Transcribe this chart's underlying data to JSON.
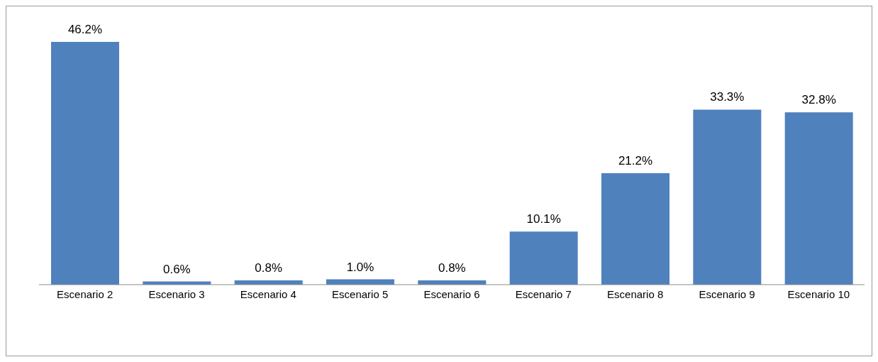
{
  "chart_data": {
    "type": "bar",
    "categories": [
      "Escenario 2",
      "Escenario 3",
      "Escenario 4",
      "Escenario 5",
      "Escenario 6",
      "Escenario 7",
      "Escenario 8",
      "Escenario 9",
      "Escenario 10"
    ],
    "values": [
      46.2,
      0.6,
      0.8,
      1.0,
      0.8,
      10.1,
      21.2,
      33.3,
      32.8
    ],
    "value_labels": [
      "46.2%",
      "0.6%",
      "0.8%",
      "1.0%",
      "0.8%",
      "10.1%",
      "21.2%",
      "33.3%",
      "32.8%"
    ],
    "color": "#4f81bd",
    "grid": false,
    "legend": false
  }
}
